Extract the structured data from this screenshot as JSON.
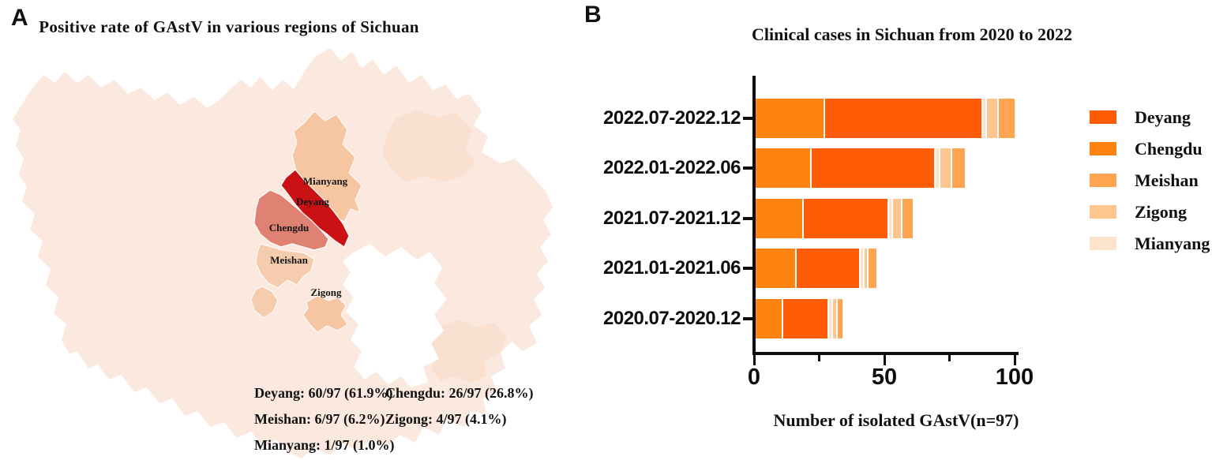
{
  "panelA": {
    "label": "A",
    "title": "Positive rate of GAstV in various regions of Sichuan",
    "map": {
      "province_name": "Sichuan",
      "province_fill": "#fbe8de",
      "patch_fill": "#f8decc",
      "regions": [
        {
          "name": "Mianyang",
          "color": "#f6c5a1"
        },
        {
          "name": "Deyang",
          "color": "#ca1114"
        },
        {
          "name": "Chengdu",
          "color": "#df8173"
        },
        {
          "name": "Meishan",
          "color": "#f6ccae"
        },
        {
          "name": "Zigong",
          "color": "#f6c5a1"
        }
      ]
    },
    "stats_rows": [
      {
        "left": "Deyang: 60/97 (61.9%)",
        "right": "Chengdu: 26/97 (26.8%)"
      },
      {
        "left": "Meishan: 6/97 (6.2%)",
        "right": "Zigong: 4/97 (4.1%)"
      },
      {
        "left": "Mianyang: 1/97 (1.0%)",
        "right": ""
      }
    ]
  },
  "panelB": {
    "label": "B",
    "title": "Clinical cases in Sichuan from 2020 to 2022",
    "xlabel": "Number of isolated GAstV(n=97)"
  },
  "chart_data": {
    "type": "bar",
    "orientation": "horizontal",
    "stacked": true,
    "title": "Clinical cases in Sichuan from 2020 to 2022",
    "xlabel": "Number of isolated GAstV(n=97)",
    "ylabel": "",
    "categories": [
      "2022.07-2022.12",
      "2022.01-2022.06",
      "2021.07-2021.12",
      "2021.01-2021.06",
      "2020.07-2020.12"
    ],
    "xlim": [
      0,
      100
    ],
    "xticks_labeled": [
      0,
      50,
      100
    ],
    "xticks_minor": [
      25,
      75
    ],
    "grid": false,
    "bar_totals": [
      97,
      78,
      58,
      44,
      31
    ],
    "series": [
      {
        "name": "Chengdu",
        "color": "#ff8310",
        "values": [
          26,
          21,
          18,
          15,
          10
        ]
      },
      {
        "name": "Deyang",
        "color": "#fe5c07",
        "values": [
          60,
          47,
          32,
          24,
          17
        ]
      },
      {
        "name": "Mianyang",
        "color": "#fbe3cc",
        "values": [
          1,
          1,
          1,
          1,
          1
        ]
      },
      {
        "name": "Zigong",
        "color": "#fdc68e",
        "values": [
          4,
          4,
          3,
          1,
          1
        ]
      },
      {
        "name": "Meishan",
        "color": "#ffa551",
        "values": [
          6,
          5,
          4,
          3,
          2
        ]
      }
    ],
    "legend": {
      "position": "right",
      "items": [
        {
          "name": "Deyang",
          "color": "#fe5c07"
        },
        {
          "name": "Chengdu",
          "color": "#ff8310"
        },
        {
          "name": "Meishan",
          "color": "#ffa551"
        },
        {
          "name": "Zigong",
          "color": "#fdc68e"
        },
        {
          "name": "Mianyang",
          "color": "#fbe3cc"
        }
      ]
    }
  }
}
